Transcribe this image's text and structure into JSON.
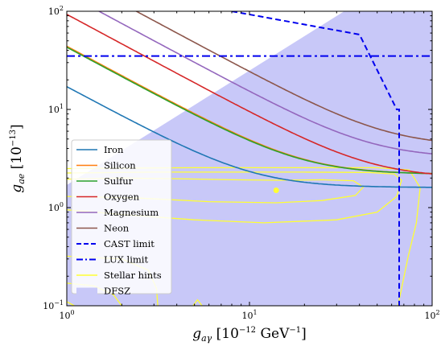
{
  "chart_data": {
    "type": "line",
    "xscale": "log",
    "yscale": "log",
    "xlim": [
      1,
      100
    ],
    "ylim": [
      0.1,
      100
    ],
    "xlabel": {
      "base": "g",
      "sub": "aγ",
      "unit": "[10",
      "exp": "−12",
      "unit2": " GeV",
      "exp2": "−1",
      "close": "]"
    },
    "ylabel": {
      "base": "g",
      "sub": "ae",
      "unit": "[10",
      "exp": "−13",
      "close": "]"
    },
    "xticks": [
      {
        "value": 1,
        "base": "10",
        "exp": "0"
      },
      {
        "value": 10,
        "base": "10",
        "exp": "1"
      },
      {
        "value": 100,
        "base": "10",
        "exp": "2"
      }
    ],
    "yticks": [
      {
        "value": 0.1,
        "base": "10",
        "exp": "−1"
      },
      {
        "value": 1,
        "base": "10",
        "exp": "0"
      },
      {
        "value": 10,
        "base": "10",
        "exp": "1"
      },
      {
        "value": 100,
        "base": "10",
        "exp": "2"
      }
    ],
    "grid": false,
    "legend_position": "lower-left",
    "series": [
      {
        "name": "Iron",
        "color": "#1f77b4",
        "plateau": 1.6,
        "scale": 17
      },
      {
        "name": "Silicon",
        "color": "#ff7f0e",
        "plateau": 2.18,
        "scale": 44
      },
      {
        "name": "Sulfur",
        "color": "#2ca02c",
        "plateau": 2.18,
        "scale": 43
      },
      {
        "name": "Oxygen",
        "color": "#d62728",
        "plateau": 2.0,
        "scale": 93
      },
      {
        "name": "Magnesium",
        "color": "#9467bd",
        "plateau": 3.2,
        "scale": 150
      },
      {
        "name": "Neon",
        "color": "#8c564b",
        "plateau": 4.2,
        "scale": 240
      }
    ],
    "limits": [
      {
        "name": "CAST limit",
        "color": "#0000ee",
        "style": "dashed",
        "points": [
          [
            8.0,
            100
          ],
          [
            40,
            58
          ],
          [
            64,
            10
          ],
          [
            66,
            10
          ],
          [
            66,
            0.1
          ]
        ]
      },
      {
        "name": "LUX limit",
        "color": "#0000ee",
        "style": "dashdot",
        "y": 35
      }
    ],
    "stellar_hints": {
      "name": "Stellar hints",
      "color": "#ffff33",
      "best_fit": [
        14,
        1.5
      ]
    },
    "dfsz": {
      "name": "DFSZ",
      "color": "#c8c8f8",
      "vertices": [
        [
          1,
          0.1
        ],
        [
          1,
          1.7
        ],
        [
          33,
          100
        ],
        [
          100,
          100
        ],
        [
          100,
          0.1
        ]
      ]
    }
  }
}
